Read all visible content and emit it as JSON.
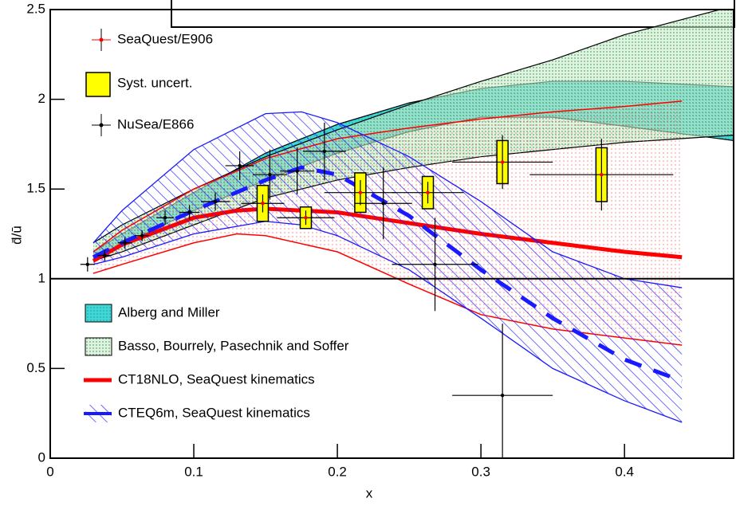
{
  "chart_data": {
    "type": "line",
    "xlabel": "x",
    "ylabel": "d̄/ū",
    "xlim": [
      0,
      0.476
    ],
    "ylim": [
      0,
      2.5
    ],
    "xticks": [
      0,
      0.1,
      0.2,
      0.3,
      0.4
    ],
    "yticks": [
      0,
      0.5,
      1,
      1.5,
      2,
      2.5
    ],
    "reference_line": 1,
    "series": [
      {
        "name": "Alberg and Miller",
        "style": "band",
        "color": "#2fc6c6",
        "x": [
          0.03,
          0.05,
          0.1,
          0.15,
          0.2,
          0.25,
          0.3,
          0.35,
          0.4,
          0.476
        ],
        "upper": [
          1.15,
          1.25,
          1.48,
          1.7,
          1.86,
          1.98,
          2.06,
          2.1,
          2.1,
          2.07
        ],
        "lower": [
          1.12,
          1.19,
          1.38,
          1.55,
          1.7,
          1.82,
          1.9,
          1.9,
          1.85,
          1.77
        ]
      },
      {
        "name": "Basso, Bourrely, Pasechnik and Soffer",
        "style": "band",
        "color": "#4fa86a",
        "x": [
          0.03,
          0.05,
          0.1,
          0.15,
          0.2,
          0.25,
          0.3,
          0.35,
          0.4,
          0.476
        ],
        "upper": [
          1.2,
          1.3,
          1.5,
          1.68,
          1.83,
          1.97,
          2.1,
          2.22,
          2.36,
          2.52
        ],
        "lower": [
          1.1,
          1.15,
          1.3,
          1.45,
          1.55,
          1.62,
          1.68,
          1.72,
          1.76,
          1.8
        ]
      },
      {
        "name": "CT18NLO, SeaQuest kinematics",
        "style": "band-line",
        "color": "#ff0000",
        "x": [
          0.03,
          0.05,
          0.1,
          0.13,
          0.15,
          0.2,
          0.25,
          0.3,
          0.35,
          0.4,
          0.44
        ],
        "values": [
          1.1,
          1.19,
          1.34,
          1.38,
          1.39,
          1.37,
          1.31,
          1.25,
          1.2,
          1.15,
          1.12
        ],
        "upper": [
          1.15,
          1.27,
          1.5,
          1.6,
          1.67,
          1.78,
          1.84,
          1.89,
          1.93,
          1.96,
          1.99
        ],
        "lower": [
          1.03,
          1.08,
          1.2,
          1.25,
          1.24,
          1.15,
          0.97,
          0.8,
          0.72,
          0.67,
          0.63
        ]
      },
      {
        "name": "CTEQ6m, SeaQuest kinematics",
        "style": "hatched-band-dashed-line",
        "color": "#1a1aff",
        "x": [
          0.03,
          0.05,
          0.1,
          0.15,
          0.175,
          0.2,
          0.25,
          0.3,
          0.35,
          0.4,
          0.44
        ],
        "values": [
          1.12,
          1.2,
          1.38,
          1.55,
          1.62,
          1.58,
          1.35,
          1.05,
          0.78,
          0.55,
          0.43
        ],
        "upper": [
          1.2,
          1.38,
          1.72,
          1.92,
          1.93,
          1.87,
          1.68,
          1.43,
          1.15,
          1.0,
          0.95
        ],
        "lower": [
          1.08,
          1.12,
          1.25,
          1.32,
          1.3,
          1.24,
          1.05,
          0.78,
          0.5,
          0.32,
          0.2
        ]
      },
      {
        "name": "SeaQuest/E906",
        "style": "points",
        "color": "#ff0000",
        "syst_name": "Syst. uncert.",
        "syst_color": "#ffff00",
        "x": [
          0.148,
          0.178,
          0.216,
          0.263,
          0.315,
          0.384
        ],
        "values": [
          1.42,
          1.34,
          1.48,
          1.48,
          1.65,
          1.58
        ],
        "xerr": [
          0.015,
          0.02,
          0.025,
          0.025,
          0.035,
          0.05
        ],
        "yerr": [
          0.05,
          0.04,
          0.07,
          0.06,
          0.15,
          0.2
        ],
        "syst": [
          0.1,
          0.06,
          0.11,
          0.09,
          0.12,
          0.15
        ]
      },
      {
        "name": "NuSea/E866",
        "style": "points",
        "color": "#000000",
        "x": [
          0.026,
          0.038,
          0.052,
          0.064,
          0.08,
          0.097,
          0.115,
          0.132,
          0.153,
          0.172,
          0.191,
          0.232,
          0.268,
          0.315
        ],
        "values": [
          1.08,
          1.13,
          1.2,
          1.24,
          1.34,
          1.37,
          1.43,
          1.63,
          1.58,
          1.6,
          1.71,
          1.42,
          1.08,
          0.35
        ],
        "xerr": [
          0.005,
          0.005,
          0.005,
          0.005,
          0.006,
          0.007,
          0.01,
          0.01,
          0.012,
          0.012,
          0.015,
          0.02,
          0.03,
          0.035
        ],
        "yerr": [
          0.04,
          0.03,
          0.03,
          0.03,
          0.04,
          0.04,
          0.05,
          0.08,
          0.14,
          0.13,
          0.16,
          0.2,
          0.26,
          0.4
        ]
      }
    ]
  }
}
